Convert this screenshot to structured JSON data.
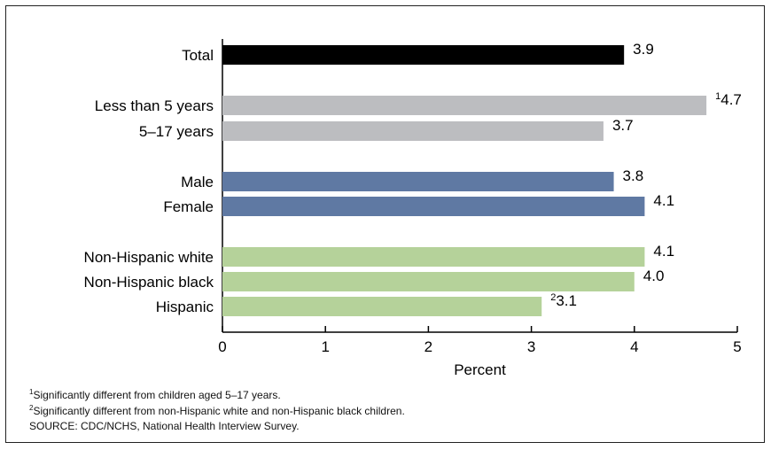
{
  "chart_data": {
    "type": "bar",
    "orientation": "horizontal",
    "xlabel": "Percent",
    "xlim": [
      0,
      5
    ],
    "xticks": [
      "0",
      "1",
      "2",
      "3",
      "4",
      "5"
    ],
    "grid": false,
    "categories": [
      "Total",
      "Less than 5 years",
      "5–17 years",
      "Male",
      "Female",
      "Non-Hispanic white",
      "Non-Hispanic black",
      "Hispanic"
    ],
    "values": [
      3.9,
      4.7,
      3.7,
      3.8,
      4.1,
      4.1,
      4.0,
      3.1
    ],
    "value_labels": [
      "3.9",
      "4.7",
      "3.7",
      "3.8",
      "4.1",
      "4.1",
      "4.0",
      "3.1"
    ],
    "value_label_marks": [
      "",
      "1",
      "",
      "",
      "",
      "",
      "",
      "2"
    ],
    "colors": [
      "#000000",
      "#bcbdc0",
      "#bcbdc0",
      "#5f79a3",
      "#5f79a3",
      "#b5d29a",
      "#b5d29a",
      "#b5d29a"
    ]
  },
  "footnotes": [
    {
      "mark": "1",
      "text": "Significantly different from children aged 5–17 years."
    },
    {
      "mark": "2",
      "text": "Significantly different from non-Hispanic white and non-Hispanic black children."
    }
  ],
  "source": "SOURCE: CDC/NCHS, National Health Interview Survey."
}
